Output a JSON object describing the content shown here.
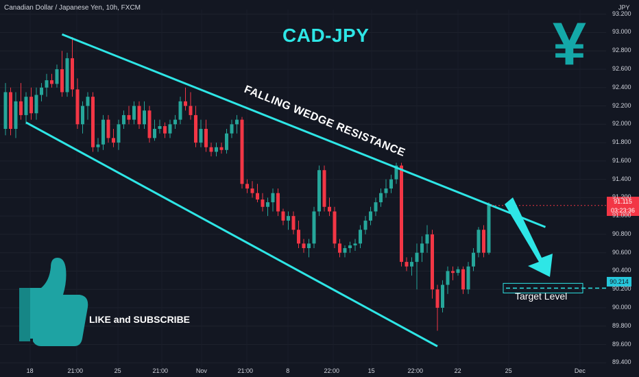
{
  "header": {
    "symbol": "Canadian Dollar / Japanese Yen, 10h, FXCM",
    "currency": "JPY"
  },
  "annotations": {
    "title": "CAD-JPY",
    "wedge_label": "FALLING WEDGE RESISTANCE",
    "like_subscribe": "LIKE and SUBSCRIBE",
    "target_label": "Target Level",
    "yen_symbol": "¥"
  },
  "price_tag": {
    "price": "91.115",
    "countdown": "03:23:36"
  },
  "target_tag": {
    "value": "90.214"
  },
  "icons": [
    "thumbs-up-icon",
    "yen-icon",
    "down-arrow-icon"
  ],
  "colors": {
    "background": "#131722",
    "up": "#26a69a",
    "down": "#f23645",
    "annotation": "#2ee6e6",
    "price_tag": "#f23645",
    "target_tag": "#26c6da"
  },
  "chart_data": {
    "type": "candlestick",
    "yaxis_ticks": [
      "93.200",
      "93.000",
      "92.800",
      "92.600",
      "92.400",
      "92.200",
      "92.000",
      "91.800",
      "91.600",
      "91.400",
      "91.200",
      "91.000",
      "90.800",
      "90.600",
      "90.400",
      "90.200",
      "90.000",
      "89.800",
      "89.600",
      "89.400"
    ],
    "xaxis_ticks": [
      "18",
      "21:00",
      "25",
      "21:00",
      "Nov",
      "21:00",
      "8",
      "22:00",
      "15",
      "22:00",
      "22",
      "25",
      "Dec"
    ],
    "ylim": [
      89.35,
      93.25
    ],
    "trendlines": [
      {
        "name": "resistance",
        "start": {
          "index": 11,
          "price": 92.98
        },
        "end": {
          "index": 105,
          "price": 90.88
        }
      },
      {
        "name": "support",
        "start": {
          "index": 4,
          "price": 92.02
        },
        "end": {
          "index": 84,
          "price": 89.58
        }
      }
    ],
    "target_level": 90.214,
    "last_price": 91.115,
    "candles": [
      {
        "o": 91.95,
        "h": 92.45,
        "l": 91.88,
        "c": 92.35
      },
      {
        "o": 92.35,
        "h": 92.4,
        "l": 91.88,
        "c": 91.95
      },
      {
        "o": 91.95,
        "h": 92.35,
        "l": 91.85,
        "c": 92.25
      },
      {
        "o": 92.25,
        "h": 92.45,
        "l": 92.05,
        "c": 92.1
      },
      {
        "o": 92.1,
        "h": 92.35,
        "l": 92.0,
        "c": 92.3
      },
      {
        "o": 92.3,
        "h": 92.4,
        "l": 92.05,
        "c": 92.12
      },
      {
        "o": 92.12,
        "h": 92.4,
        "l": 92.05,
        "c": 92.32
      },
      {
        "o": 92.32,
        "h": 92.45,
        "l": 92.25,
        "c": 92.4
      },
      {
        "o": 92.4,
        "h": 92.55,
        "l": 92.3,
        "c": 92.48
      },
      {
        "o": 92.48,
        "h": 92.55,
        "l": 92.4,
        "c": 92.44
      },
      {
        "o": 92.44,
        "h": 92.65,
        "l": 92.4,
        "c": 92.6
      },
      {
        "o": 92.6,
        "h": 92.8,
        "l": 92.3,
        "c": 92.35
      },
      {
        "o": 92.35,
        "h": 92.78,
        "l": 92.3,
        "c": 92.72
      },
      {
        "o": 92.72,
        "h": 92.95,
        "l": 92.3,
        "c": 92.38
      },
      {
        "o": 92.38,
        "h": 92.5,
        "l": 91.95,
        "c": 92.0
      },
      {
        "o": 92.0,
        "h": 92.25,
        "l": 91.9,
        "c": 92.2
      },
      {
        "o": 92.2,
        "h": 92.35,
        "l": 92.05,
        "c": 92.3
      },
      {
        "o": 92.3,
        "h": 92.35,
        "l": 91.7,
        "c": 91.75
      },
      {
        "o": 91.75,
        "h": 91.85,
        "l": 91.7,
        "c": 91.78
      },
      {
        "o": 91.78,
        "h": 92.1,
        "l": 91.72,
        "c": 92.05
      },
      {
        "o": 92.05,
        "h": 92.1,
        "l": 91.8,
        "c": 91.85
      },
      {
        "o": 91.85,
        "h": 91.95,
        "l": 91.75,
        "c": 91.8
      },
      {
        "o": 91.8,
        "h": 92.05,
        "l": 91.72,
        "c": 92.0
      },
      {
        "o": 92.0,
        "h": 92.15,
        "l": 91.95,
        "c": 92.1
      },
      {
        "o": 92.1,
        "h": 92.2,
        "l": 92.0,
        "c": 92.05
      },
      {
        "o": 92.05,
        "h": 92.25,
        "l": 92.0,
        "c": 92.2
      },
      {
        "o": 92.2,
        "h": 92.25,
        "l": 91.95,
        "c": 92.0
      },
      {
        "o": 92.0,
        "h": 92.25,
        "l": 91.95,
        "c": 92.15
      },
      {
        "o": 92.15,
        "h": 92.2,
        "l": 91.8,
        "c": 91.85
      },
      {
        "o": 91.85,
        "h": 92.05,
        "l": 91.82,
        "c": 91.95
      },
      {
        "o": 91.95,
        "h": 92.05,
        "l": 91.9,
        "c": 91.98
      },
      {
        "o": 91.98,
        "h": 92.02,
        "l": 91.85,
        "c": 91.9
      },
      {
        "o": 91.9,
        "h": 92.05,
        "l": 91.85,
        "c": 92.0
      },
      {
        "o": 92.0,
        "h": 92.1,
        "l": 91.95,
        "c": 92.05
      },
      {
        "o": 92.05,
        "h": 92.3,
        "l": 92.0,
        "c": 92.25
      },
      {
        "o": 92.25,
        "h": 92.4,
        "l": 92.15,
        "c": 92.2
      },
      {
        "o": 92.2,
        "h": 92.35,
        "l": 92.05,
        "c": 92.1
      },
      {
        "o": 92.1,
        "h": 92.2,
        "l": 91.75,
        "c": 91.8
      },
      {
        "o": 91.8,
        "h": 92.05,
        "l": 91.75,
        "c": 91.95
      },
      {
        "o": 91.95,
        "h": 92.05,
        "l": 91.7,
        "c": 91.75
      },
      {
        "o": 91.75,
        "h": 91.8,
        "l": 91.65,
        "c": 91.7
      },
      {
        "o": 91.7,
        "h": 91.8,
        "l": 91.65,
        "c": 91.75
      },
      {
        "o": 91.75,
        "h": 91.8,
        "l": 91.68,
        "c": 91.72
      },
      {
        "o": 91.72,
        "h": 91.95,
        "l": 91.68,
        "c": 91.9
      },
      {
        "o": 91.9,
        "h": 92.05,
        "l": 91.85,
        "c": 92.0
      },
      {
        "o": 92.0,
        "h": 92.1,
        "l": 91.9,
        "c": 92.05
      },
      {
        "o": 92.05,
        "h": 92.08,
        "l": 91.3,
        "c": 91.35
      },
      {
        "o": 91.35,
        "h": 91.4,
        "l": 91.25,
        "c": 91.3
      },
      {
        "o": 91.3,
        "h": 91.38,
        "l": 91.2,
        "c": 91.25
      },
      {
        "o": 91.25,
        "h": 91.35,
        "l": 91.15,
        "c": 91.18
      },
      {
        "o": 91.18,
        "h": 91.25,
        "l": 91.05,
        "c": 91.1
      },
      {
        "o": 91.1,
        "h": 91.2,
        "l": 91.0,
        "c": 91.15
      },
      {
        "o": 91.15,
        "h": 91.3,
        "l": 91.05,
        "c": 91.25
      },
      {
        "o": 91.25,
        "h": 91.3,
        "l": 91.0,
        "c": 91.05
      },
      {
        "o": 91.05,
        "h": 91.08,
        "l": 90.9,
        "c": 90.95
      },
      {
        "o": 90.95,
        "h": 91.05,
        "l": 90.85,
        "c": 91.0
      },
      {
        "o": 91.0,
        "h": 91.05,
        "l": 90.8,
        "c": 90.85
      },
      {
        "o": 90.85,
        "h": 90.95,
        "l": 90.65,
        "c": 90.7
      },
      {
        "o": 90.7,
        "h": 90.75,
        "l": 90.6,
        "c": 90.65
      },
      {
        "o": 90.65,
        "h": 90.75,
        "l": 90.55,
        "c": 90.7
      },
      {
        "o": 90.7,
        "h": 91.1,
        "l": 90.65,
        "c": 91.05
      },
      {
        "o": 91.05,
        "h": 91.55,
        "l": 91.0,
        "c": 91.5
      },
      {
        "o": 91.5,
        "h": 91.55,
        "l": 91.05,
        "c": 91.1
      },
      {
        "o": 91.1,
        "h": 91.2,
        "l": 91.0,
        "c": 91.05
      },
      {
        "o": 91.05,
        "h": 91.1,
        "l": 90.65,
        "c": 90.7
      },
      {
        "o": 90.7,
        "h": 90.75,
        "l": 90.55,
        "c": 90.6
      },
      {
        "o": 90.6,
        "h": 90.68,
        "l": 90.55,
        "c": 90.65
      },
      {
        "o": 90.65,
        "h": 90.72,
        "l": 90.6,
        "c": 90.68
      },
      {
        "o": 90.68,
        "h": 90.75,
        "l": 90.62,
        "c": 90.7
      },
      {
        "o": 90.7,
        "h": 90.9,
        "l": 90.65,
        "c": 90.85
      },
      {
        "o": 90.85,
        "h": 91.0,
        "l": 90.8,
        "c": 90.95
      },
      {
        "o": 90.95,
        "h": 91.1,
        "l": 90.9,
        "c": 91.05
      },
      {
        "o": 91.05,
        "h": 91.2,
        "l": 91.0,
        "c": 91.15
      },
      {
        "o": 91.15,
        "h": 91.3,
        "l": 91.1,
        "c": 91.25
      },
      {
        "o": 91.25,
        "h": 91.4,
        "l": 91.2,
        "c": 91.3
      },
      {
        "o": 91.3,
        "h": 91.45,
        "l": 91.25,
        "c": 91.4
      },
      {
        "o": 91.4,
        "h": 91.58,
        "l": 91.35,
        "c": 91.55
      },
      {
        "o": 91.55,
        "h": 91.58,
        "l": 90.45,
        "c": 90.5
      },
      {
        "o": 90.5,
        "h": 90.55,
        "l": 90.4,
        "c": 90.45
      },
      {
        "o": 90.45,
        "h": 90.55,
        "l": 90.35,
        "c": 90.5
      },
      {
        "o": 90.5,
        "h": 90.7,
        "l": 90.2,
        "c": 90.6
      },
      {
        "o": 90.6,
        "h": 90.78,
        "l": 90.5,
        "c": 90.7
      },
      {
        "o": 90.7,
        "h": 90.9,
        "l": 90.6,
        "c": 90.8
      },
      {
        "o": 90.8,
        "h": 90.85,
        "l": 90.1,
        "c": 90.2
      },
      {
        "o": 90.2,
        "h": 90.25,
        "l": 89.75,
        "c": 90.0
      },
      {
        "o": 90.0,
        "h": 90.3,
        "l": 89.95,
        "c": 90.25
      },
      {
        "o": 90.25,
        "h": 90.45,
        "l": 90.15,
        "c": 90.4
      },
      {
        "o": 90.4,
        "h": 90.45,
        "l": 90.3,
        "c": 90.38
      },
      {
        "o": 90.38,
        "h": 90.45,
        "l": 90.35,
        "c": 90.42
      },
      {
        "o": 90.42,
        "h": 90.45,
        "l": 90.15,
        "c": 90.2
      },
      {
        "o": 90.2,
        "h": 90.5,
        "l": 90.15,
        "c": 90.45
      },
      {
        "o": 90.45,
        "h": 90.65,
        "l": 90.4,
        "c": 90.6
      },
      {
        "o": 90.6,
        "h": 90.88,
        "l": 90.55,
        "c": 90.85
      },
      {
        "o": 90.85,
        "h": 90.9,
        "l": 90.55,
        "c": 90.6
      },
      {
        "o": 90.6,
        "h": 91.15,
        "l": 90.58,
        "c": 91.12
      }
    ]
  }
}
